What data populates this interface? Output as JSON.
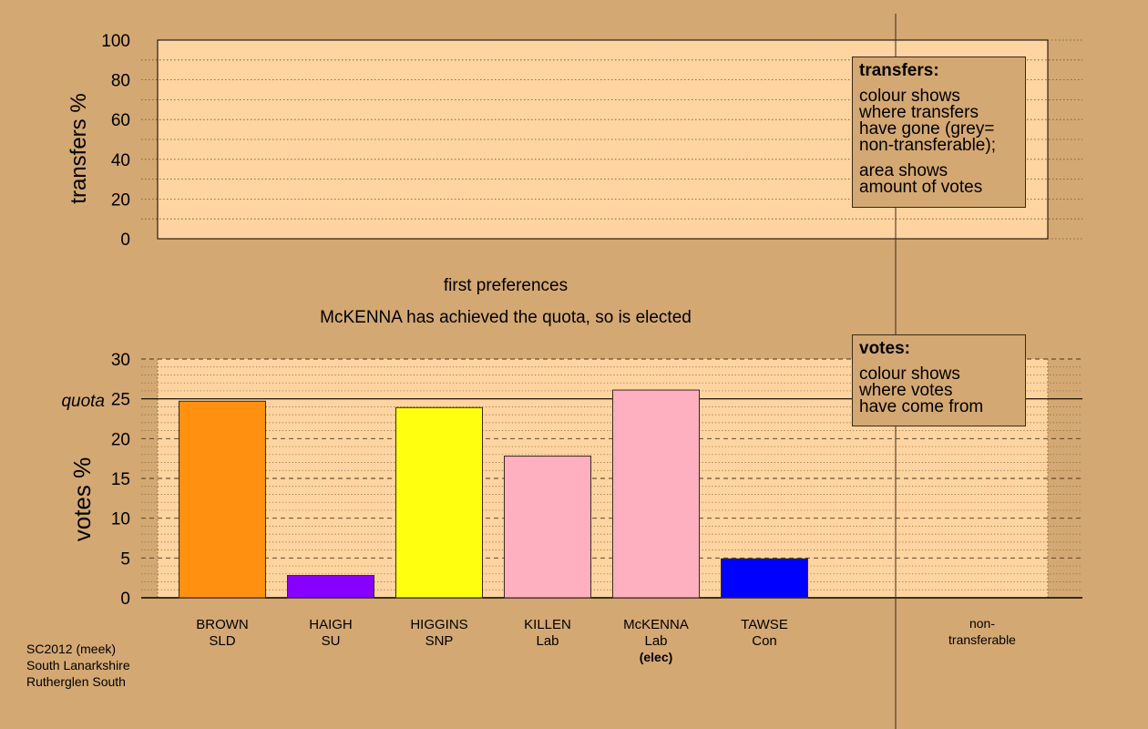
{
  "chart_data": [
    {
      "type": "bar",
      "title": "",
      "ylabel": "transfers %",
      "ylim": [
        0,
        100
      ],
      "yticks": [
        0,
        20,
        40,
        60,
        80,
        100
      ],
      "grid": "dotted",
      "categories": [],
      "values": []
    },
    {
      "type": "bar",
      "title": "first preferences",
      "subtitle": "McKENNA has achieved the quota, so is elected",
      "ylabel": "votes %",
      "ylim": [
        0,
        30
      ],
      "yticks": [
        0,
        5,
        10,
        15,
        20,
        25,
        30
      ],
      "quota": 25,
      "quota_label": "quota",
      "grid": "dashed",
      "categories": [
        {
          "name": "BROWN",
          "party": "SLD",
          "note": ""
        },
        {
          "name": "HAIGH",
          "party": "SU",
          "note": ""
        },
        {
          "name": "HIGGINS",
          "party": "SNP",
          "note": ""
        },
        {
          "name": "KILLEN",
          "party": "Lab",
          "note": ""
        },
        {
          "name": "McKENNA",
          "party": "Lab",
          "note": "(elec)"
        },
        {
          "name": "TAWSE",
          "party": "Con",
          "note": ""
        }
      ],
      "values": [
        24.7,
        2.8,
        23.9,
        17.8,
        26.1,
        4.9
      ],
      "colors": [
        "#ff9010",
        "#8800ff",
        "#ffff10",
        "#ffb0c0",
        "#ffb0c0",
        "#0000ff"
      ],
      "extra_category": {
        "line1": "non-",
        "line2": "transferable"
      }
    }
  ],
  "legend_transfers": {
    "title": "transfers:",
    "lines1": [
      "colour shows",
      "where transfers",
      "have gone (grey=",
      "non-transferable);"
    ],
    "lines2": [
      "area shows",
      "amount of votes"
    ]
  },
  "legend_votes": {
    "title": "votes:",
    "lines1": [
      "colour shows",
      "where votes",
      "have come from"
    ]
  },
  "footer": {
    "line1": "SC2012 (meek)",
    "line2": "South Lanarkshire",
    "line3": "Rutherglen South"
  },
  "colors": {
    "background": "#d4a872",
    "plot_bg": "#ffd4a0",
    "axis": "#000000"
  }
}
